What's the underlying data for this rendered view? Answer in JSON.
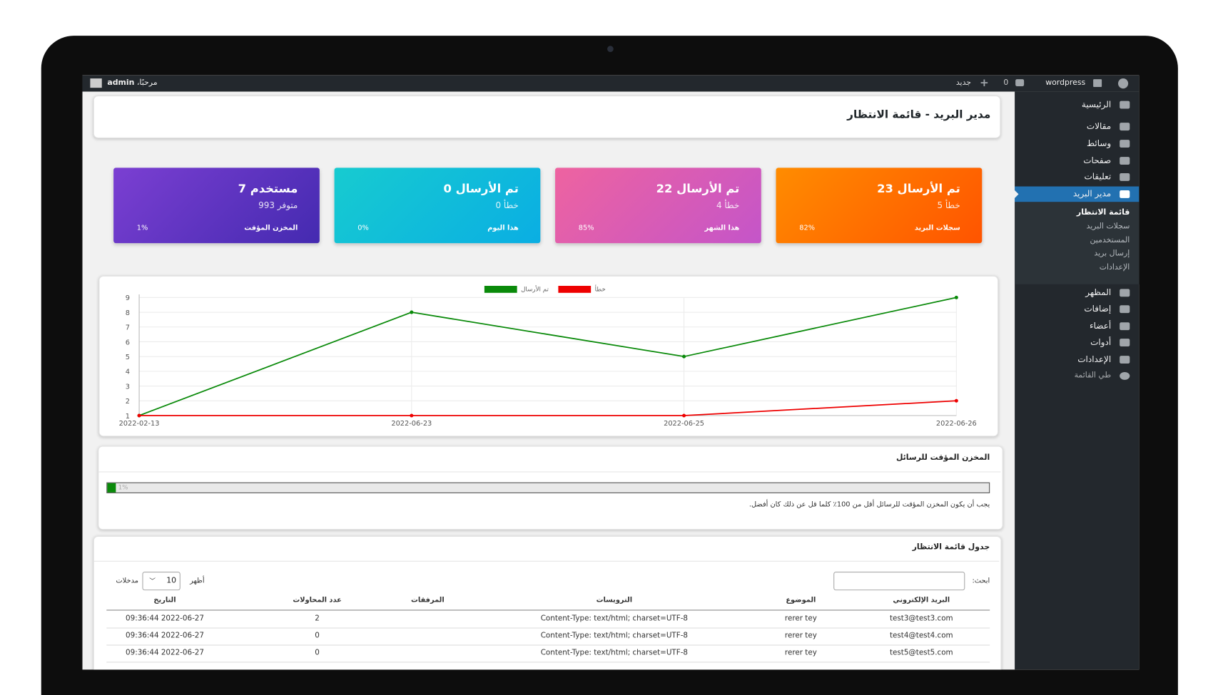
{
  "admin_bar": {
    "site": "wordpress",
    "comments": "0",
    "new": "جديد",
    "greeting": "مرحبًا،",
    "user": "admin"
  },
  "menu": {
    "items_top": [
      "الرئيسية",
      "مقالات",
      "وسائط",
      "صفحات",
      "تعليقات",
      "مدير البريد"
    ],
    "submenu": [
      "قائمة الانتظار",
      "سجلات البريد",
      "المستخدمين",
      "إرسال بريد",
      "الإعدادات"
    ],
    "items_bottom": [
      "المظهر",
      "إضافات",
      "أعضاء",
      "أدوات",
      "الإعدادات",
      "طي القائمة"
    ]
  },
  "page_title": "مدير البريد - قائمة الانتظار",
  "cards": [
    {
      "title": "تم الأرسال 23",
      "subtitle": "خطأ 5",
      "footer_label": "سجلات البريد",
      "footer_value": "82%"
    },
    {
      "title": "تم الأرسال 22",
      "subtitle": "خطأ 4",
      "footer_label": "هذا الشهر",
      "footer_value": "85%"
    },
    {
      "title": "تم الأرسال 0",
      "subtitle": "خطأ 0",
      "footer_label": "هذا اليوم",
      "footer_value": "0%"
    },
    {
      "title": "مستخدم 7",
      "subtitle": "متوفر 993",
      "footer_label": "المخزن المؤقت",
      "footer_value": "1%"
    }
  ],
  "chart": {
    "type": "line",
    "categories": [
      "2022-02-13",
      "2022-06-23",
      "2022-06-25",
      "2022-06-26"
    ],
    "series": [
      {
        "name": "تم الأرسال",
        "color": "#0a8a0a",
        "values": [
          1,
          8,
          5,
          9
        ]
      },
      {
        "name": "خطأ",
        "color": "#ee0000",
        "values": [
          1,
          1,
          1,
          2
        ]
      }
    ],
    "ylim": [
      1,
      9
    ],
    "yticks": [
      1,
      2,
      3,
      4,
      5,
      6,
      7,
      8,
      9
    ],
    "grid": true
  },
  "cache": {
    "title": "المخزن المؤقت للرسائل",
    "progress": {
      "value": 1,
      "label": "1%"
    },
    "note": "يجب أن يكون المخزن المؤقت للرسائل أقل من 100٪ كلما قل عن ذلك كان أفضل."
  },
  "queue": {
    "title": "جدول قائمة الانتظار",
    "search_label": "ابحث:",
    "show": "أظهر",
    "page_size": "10",
    "entries": "مدخلات",
    "columns": [
      "البريد الإلكتروني",
      "الموضوع",
      "الترويسات",
      "المرفقات",
      "عدد المحاولات",
      "التاريخ"
    ],
    "rows": [
      {
        "email": "test3@test3.com",
        "subject": "rerer tey",
        "headers": "Content-Type: text/html; charset=UTF-8",
        "attempts": "2",
        "date": "09:36:44 2022-06-27"
      },
      {
        "email": "test4@test4.com",
        "subject": "rerer tey",
        "headers": "Content-Type: text/html; charset=UTF-8",
        "attempts": "0",
        "date": "09:36:44 2022-06-27"
      },
      {
        "email": "test5@test5.com",
        "subject": "rerer tey",
        "headers": "Content-Type: text/html; charset=UTF-8",
        "attempts": "0",
        "date": "09:36:44 2022-06-27"
      }
    ]
  }
}
